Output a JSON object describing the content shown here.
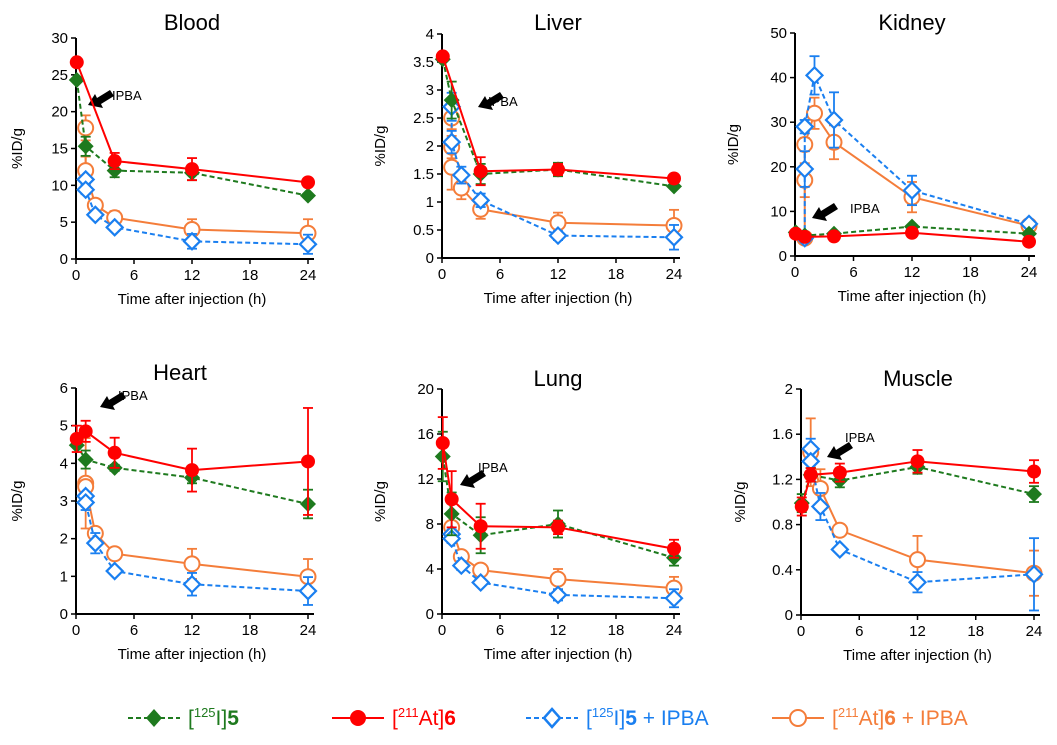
{
  "chart_data": [
    {
      "type": "line",
      "title": "Blood",
      "xlabel": "Time after injection (h)",
      "ylabel": "%ID/g",
      "xlim": [
        0,
        24
      ],
      "ylim": [
        0,
        30
      ],
      "xticks": [
        0,
        6,
        12,
        18,
        24
      ],
      "yticks": [
        0,
        5,
        10,
        15,
        20,
        25,
        30
      ],
      "annotation": "IPBA",
      "series": [
        {
          "name": "[125I]5",
          "x": [
            0.08,
            1,
            4,
            12,
            24
          ],
          "y": [
            24.3,
            15.3,
            12.0,
            11.7,
            8.6
          ],
          "err": [
            0,
            1.3,
            0.9,
            1.0,
            0.3
          ]
        },
        {
          "name": "[211At]6",
          "x": [
            0.08,
            4,
            12,
            24
          ],
          "y": [
            26.7,
            13.3,
            12.2,
            10.4
          ],
          "err": [
            0,
            1.1,
            1.5,
            0.3
          ]
        },
        {
          "name": "[125I]5 + IPBA",
          "x": [
            1,
            1,
            2,
            4,
            12,
            24
          ],
          "y": [
            10.8,
            9.4,
            6.0,
            4.3,
            2.4,
            2.0
          ],
          "err": [
            0.5,
            0.6,
            0.5,
            0.5,
            1.0,
            1.3
          ]
        },
        {
          "name": "[211At]6 + IPBA",
          "x": [
            1,
            1,
            2,
            4,
            12,
            24
          ],
          "y": [
            17.8,
            12.0,
            7.3,
            5.6,
            4.0,
            3.5
          ],
          "err": [
            1.7,
            1.9,
            0.6,
            0.9,
            1.4,
            1.9
          ]
        }
      ]
    },
    {
      "type": "line",
      "title": "Liver",
      "xlabel": "Time after injection (h)",
      "ylabel": "%ID/g",
      "xlim": [
        0,
        24
      ],
      "ylim": [
        0,
        4
      ],
      "xticks": [
        0,
        6,
        12,
        18,
        24
      ],
      "yticks": [
        0,
        0.5,
        1,
        1.5,
        2,
        2.5,
        3,
        3.5,
        4
      ],
      "annotation": "IPBA",
      "series": [
        {
          "name": "[125I]5",
          "x": [
            0.08,
            1,
            4,
            12,
            24
          ],
          "y": [
            3.55,
            2.82,
            1.5,
            1.58,
            1.28
          ],
          "err": [
            0,
            0.33,
            0.18,
            0.12,
            0.03
          ]
        },
        {
          "name": "[211At]6",
          "x": [
            0.08,
            4,
            12,
            24
          ],
          "y": [
            3.6,
            1.55,
            1.58,
            1.42
          ],
          "err": [
            0,
            0.25,
            0.1,
            0.03
          ]
        },
        {
          "name": "[125I]5 + IPBA",
          "x": [
            1,
            1,
            2,
            4,
            12,
            24
          ],
          "y": [
            2.7,
            2.07,
            1.48,
            1.03,
            0.4,
            0.37
          ],
          "err": [
            0.25,
            0.2,
            0.15,
            0.12,
            0.08,
            0.22
          ]
        },
        {
          "name": "[211At]6 + IPBA",
          "x": [
            1,
            1,
            1,
            2,
            4,
            12,
            24
          ],
          "y": [
            2.5,
            1.98,
            1.62,
            1.25,
            0.87,
            0.63,
            0.58
          ],
          "err": [
            0.2,
            0.2,
            0.4,
            0.2,
            0.17,
            0.18,
            0.28
          ]
        }
      ]
    },
    {
      "type": "line",
      "title": "Kidney",
      "xlabel": "Time after injection (h)",
      "ylabel": "%ID/g",
      "xlim": [
        0,
        24
      ],
      "ylim": [
        0,
        50
      ],
      "xticks": [
        0,
        6,
        12,
        18,
        24
      ],
      "yticks": [
        0,
        10,
        20,
        30,
        40,
        50
      ],
      "annotation": "IPBA",
      "series": [
        {
          "name": "[125I]5",
          "x": [
            0.08,
            1,
            4,
            12,
            24
          ],
          "y": [
            5.3,
            4.6,
            5.0,
            6.6,
            5.0
          ],
          "err": [
            0,
            0,
            0,
            0,
            0
          ]
        },
        {
          "name": "[211At]6",
          "x": [
            0.08,
            1,
            4,
            12,
            24
          ],
          "y": [
            5.0,
            4.3,
            4.4,
            5.2,
            3.2
          ],
          "err": [
            0,
            0,
            0,
            0,
            0
          ]
        },
        {
          "name": "[125I]5 + IPBA",
          "x": [
            1,
            1,
            1,
            2,
            4,
            12,
            24
          ],
          "y": [
            4.0,
            19.5,
            29.0,
            40.5,
            30.5,
            14.7,
            7.2
          ],
          "err": [
            0,
            4.0,
            1.5,
            4.3,
            6.2,
            3.3,
            0.5
          ]
        },
        {
          "name": "[211At]6 + IPBA",
          "x": [
            1,
            1,
            1,
            2,
            4,
            12,
            24
          ],
          "y": [
            4.0,
            17.0,
            25.0,
            32.0,
            25.5,
            13.2,
            6.8
          ],
          "err": [
            0,
            3.8,
            1.5,
            3.5,
            3.8,
            3.4,
            0.4
          ]
        }
      ]
    },
    {
      "type": "line",
      "title": "Heart",
      "xlabel": "Time after injection (h)",
      "ylabel": "%ID/g",
      "xlim": [
        0,
        24
      ],
      "ylim": [
        0,
        6
      ],
      "xticks": [
        0,
        6,
        12,
        18,
        24
      ],
      "yticks": [
        0,
        1,
        2,
        3,
        4,
        5,
        6
      ],
      "annotation": "IPBA",
      "series": [
        {
          "name": "[125I]5",
          "x": [
            0.08,
            1,
            4,
            12,
            24
          ],
          "y": [
            4.48,
            4.1,
            3.88,
            3.62,
            2.92
          ],
          "err": [
            0,
            0.24,
            0.08,
            0.15,
            0.38
          ]
        },
        {
          "name": "[211At]6",
          "x": [
            0.08,
            1,
            4,
            12,
            24
          ],
          "y": [
            4.65,
            4.85,
            4.28,
            3.82,
            4.05
          ],
          "err": [
            0.35,
            0.28,
            0.4,
            0.57,
            1.42
          ]
        },
        {
          "name": "[125I]5 + IPBA",
          "x": [
            1,
            1,
            2,
            4,
            12,
            24
          ],
          "y": [
            3.13,
            2.96,
            1.88,
            1.14,
            0.79,
            0.61
          ],
          "err": [
            0.1,
            0.2,
            0.27,
            0.08,
            0.3,
            0.37
          ]
        },
        {
          "name": "[211At]6 + IPBA",
          "x": [
            1,
            1,
            2,
            4,
            12,
            24
          ],
          "y": [
            3.47,
            3.38,
            2.14,
            1.6,
            1.33,
            0.99
          ],
          "err": [
            1.2,
            0.15,
            0.12,
            0.1,
            0.4,
            0.47
          ]
        }
      ]
    },
    {
      "type": "line",
      "title": "Lung",
      "xlabel": "Time after injection (h)",
      "ylabel": "%ID/g",
      "xlim": [
        0,
        24
      ],
      "ylim": [
        0,
        20
      ],
      "xticks": [
        0,
        6,
        12,
        18,
        24
      ],
      "yticks": [
        0,
        4,
        8,
        12,
        16,
        20
      ],
      "annotation": "IPBA",
      "series": [
        {
          "name": "[125I]5",
          "x": [
            0.08,
            1,
            4,
            12,
            24
          ],
          "y": [
            14.0,
            8.9,
            7.0,
            8.0,
            5.0
          ],
          "err": [
            2.2,
            1.9,
            1.6,
            1.2,
            0.7
          ]
        },
        {
          "name": "[211At]6",
          "x": [
            0.08,
            1,
            4,
            12,
            24
          ],
          "y": [
            15.2,
            10.2,
            7.8,
            7.7,
            5.8
          ],
          "err": [
            2.3,
            2.5,
            2.0,
            0.6,
            0.8
          ]
        },
        {
          "name": "[125I]5 + IPBA",
          "x": [
            1,
            1,
            2,
            4,
            12,
            24
          ],
          "y": [
            7.1,
            6.7,
            4.3,
            2.8,
            1.7,
            1.4
          ],
          "err": [
            0.4,
            0.4,
            0.4,
            0.3,
            0.5,
            0.8
          ]
        },
        {
          "name": "[211At]6 + IPBA",
          "x": [
            1,
            2,
            4,
            12,
            24
          ],
          "y": [
            7.7,
            5.1,
            3.9,
            3.1,
            2.3
          ],
          "err": [
            0.4,
            0.3,
            0.3,
            0.9,
            1.0
          ]
        }
      ]
    },
    {
      "type": "line",
      "title": "Muscle",
      "xlabel": "Time after injection (h)",
      "ylabel": "%ID/g",
      "xlim": [
        0,
        24
      ],
      "ylim": [
        0,
        2
      ],
      "xticks": [
        0,
        6,
        12,
        18,
        24
      ],
      "yticks": [
        0,
        0.4,
        0.8,
        1.2,
        1.6,
        2
      ],
      "annotation": "IPBA",
      "series": [
        {
          "name": "[125I]5",
          "x": [
            0.08,
            1,
            4,
            12,
            24
          ],
          "y": [
            0.99,
            1.24,
            1.19,
            1.31,
            1.07
          ],
          "err": [
            0.08,
            0.06,
            0.06,
            0.06,
            0.07
          ]
        },
        {
          "name": "[211At]6",
          "x": [
            0.08,
            1,
            4,
            12,
            24
          ],
          "y": [
            0.96,
            1.24,
            1.26,
            1.36,
            1.27
          ],
          "err": [
            0.08,
            0.06,
            0.08,
            0.1,
            0.1
          ]
        },
        {
          "name": "[125I]5 + IPBA",
          "x": [
            1,
            1,
            2,
            4,
            12,
            24
          ],
          "y": [
            1.47,
            1.36,
            0.96,
            0.58,
            0.29,
            0.36
          ],
          "err": [
            0.09,
            0.1,
            0.12,
            0.02,
            0.09,
            0.32
          ]
        },
        {
          "name": "[211At]6 + IPBA",
          "x": [
            1,
            2,
            4,
            12,
            24
          ],
          "y": [
            1.44,
            1.12,
            0.75,
            0.49,
            0.37
          ],
          "err": [
            0.3,
            0.17,
            0.02,
            0.21,
            0.2
          ]
        }
      ]
    }
  ],
  "series_styles": [
    {
      "key": "[125I]5",
      "color": "#1e7a1e",
      "marker": "diamond-filled",
      "line": "dashed"
    },
    {
      "key": "[211At]6",
      "color": "#ff0000",
      "marker": "circle-filled",
      "line": "solid"
    },
    {
      "key": "[125I]5 + IPBA",
      "color": "#1a7ff0",
      "marker": "diamond-open",
      "line": "dashed"
    },
    {
      "key": "[211At]6 + IPBA",
      "color": "#f47d3a",
      "marker": "circle-open",
      "line": "solid"
    }
  ],
  "legend": {
    "placement": "bottom",
    "items": [
      {
        "prefix": "[",
        "sup": "125",
        "mid": "I]",
        "bold": "5",
        "suffix": ""
      },
      {
        "prefix": "[",
        "sup": "211",
        "mid": "At]",
        "bold": "6",
        "suffix": ""
      },
      {
        "prefix": "[",
        "sup": "125",
        "mid": "I]",
        "bold": "5",
        "suffix": " + IPBA"
      },
      {
        "prefix": "[",
        "sup": "211",
        "mid": "At]",
        "bold": "6",
        "suffix": " + IPBA"
      }
    ]
  }
}
